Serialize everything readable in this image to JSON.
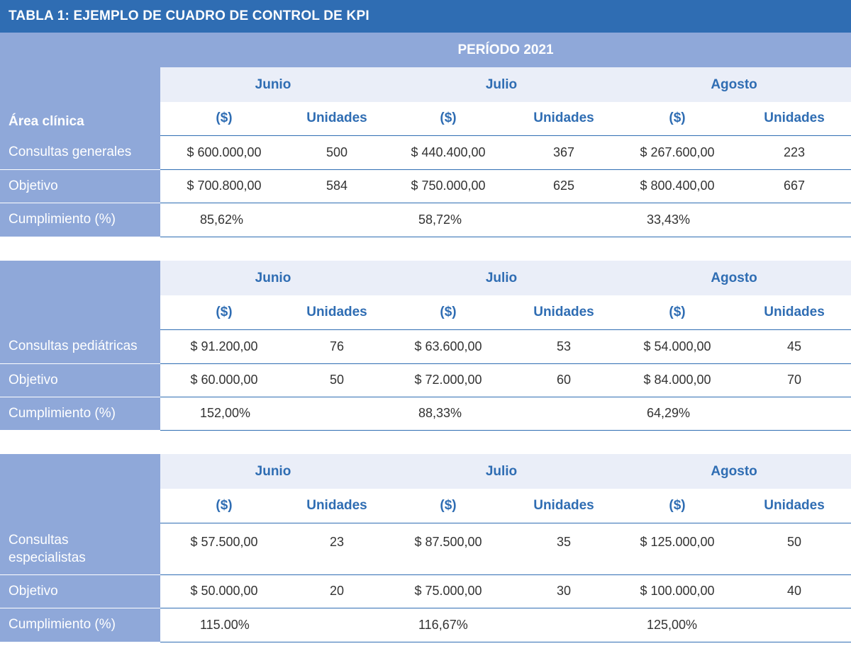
{
  "title": "TABLA 1: EJEMPLO DE CUADRO DE CONTROL DE KPI",
  "period": "PERÍODO 2021",
  "area_label": "Área clínica",
  "months": [
    "Junio",
    "Julio",
    "Agosto"
  ],
  "col_money": "($)",
  "col_units": "Unidades",
  "blocks": [
    {
      "rows": [
        {
          "label": "Consultas generales",
          "cells": [
            "$ 600.000,00",
            "500",
            "$ 440.400,00",
            "367",
            "$ 267.600,00",
            "223"
          ]
        },
        {
          "label": "Objetivo",
          "cells": [
            "$ 700.800,00",
            "584",
            "$ 750.000,00",
            "625",
            "$ 800.400,00",
            "667"
          ]
        }
      ],
      "compliance_label": "Cumplimiento (%)",
      "compliance": [
        "85,62%",
        "58,72%",
        "33,43%"
      ]
    },
    {
      "rows": [
        {
          "label": "Consultas pediátricas",
          "cells": [
            "$ 91.200,00",
            "76",
            "$ 63.600,00",
            "53",
            "$ 54.000,00",
            "45"
          ]
        },
        {
          "label": "Objetivo",
          "cells": [
            "$ 60.000,00",
            "50",
            "$ 72.000,00",
            "60",
            "$ 84.000,00",
            "70"
          ]
        }
      ],
      "compliance_label": "Cumplimiento (%)",
      "compliance": [
        "152,00%",
        "88,33%",
        "64,29%"
      ]
    },
    {
      "rows": [
        {
          "label": "Consultas especialistas",
          "cells": [
            "$ 57.500,00",
            "23",
            "$ 87.500,00",
            "35",
            "$ 125.000,00",
            "50"
          ]
        },
        {
          "label": "Objetivo",
          "cells": [
            "$ 50.000,00",
            "20",
            "$ 75.000,00",
            "30",
            "$ 100.000,00",
            "40"
          ]
        }
      ],
      "compliance_label": "Cumplimiento (%)",
      "compliance": [
        "115.00%",
        "116,67%",
        "125,00%"
      ]
    }
  ]
}
